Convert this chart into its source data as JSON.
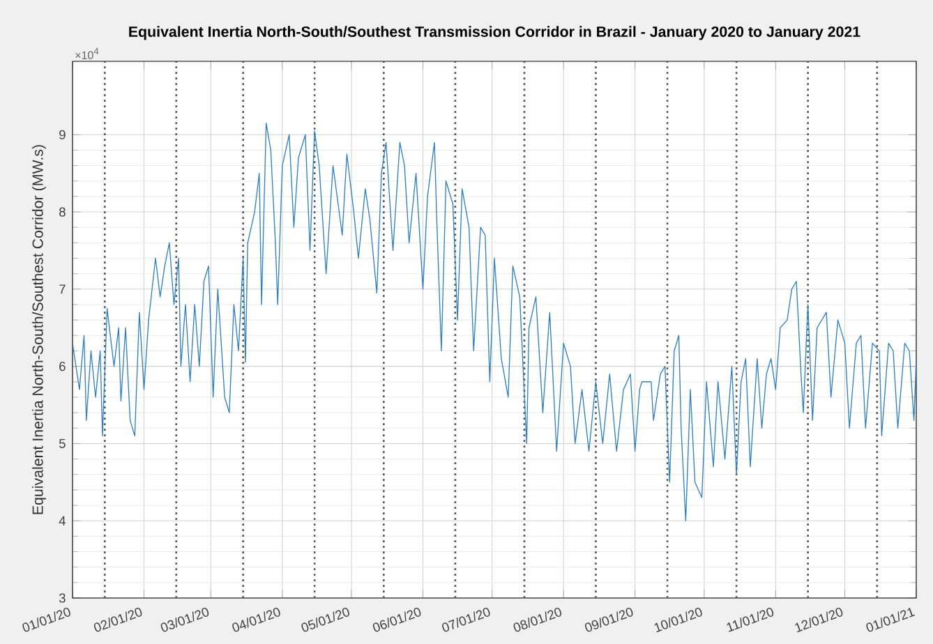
{
  "chart_data": {
    "type": "line",
    "title": "Equivalent Inertia North-South/Southest Transmission Corridor in Brazil - January 2020 to January 2021",
    "ylabel": "Equivalent Inertia  North-South/Southest Corridor (MW.s)",
    "annotations": [
      "×10$^{4}$"
    ],
    "xlim": [
      "2020-01-01",
      "2021-01-01"
    ],
    "xticks": [
      {
        "value": "2020-01-01",
        "label": "01/01/20"
      },
      {
        "value": "2020-02-01",
        "label": "02/01/20"
      },
      {
        "value": "2020-03-01",
        "label": "03/01/20"
      },
      {
        "value": "2020-04-01",
        "label": "04/01/20"
      },
      {
        "value": "2020-05-01",
        "label": "05/01/20"
      },
      {
        "value": "2020-06-01",
        "label": "06/01/20"
      },
      {
        "value": "2020-07-01",
        "label": "07/01/20"
      },
      {
        "value": "2020-08-01",
        "label": "08/01/20"
      },
      {
        "value": "2020-09-01",
        "label": "09/01/20"
      },
      {
        "value": "2020-10-01",
        "label": "10/01/20"
      },
      {
        "value": "2020-11-01",
        "label": "11/01/20"
      },
      {
        "value": "2020-12-01",
        "label": "12/01/20"
      },
      {
        "value": "2021-01-01",
        "label": "01/01/21"
      }
    ],
    "ylim": [
      3,
      9.95
    ],
    "yticks": [
      3,
      4,
      5,
      6,
      7,
      8,
      9
    ],
    "grid": true,
    "line_style": "solid",
    "ref_lines": [
      {
        "axis": "x",
        "value": "2020-01-15",
        "color": "#555555",
        "line_style": "dotted"
      },
      {
        "axis": "x",
        "value": "2020-02-15",
        "color": "#555555",
        "line_style": "dotted"
      },
      {
        "axis": "x",
        "value": "2020-03-15",
        "color": "#555555",
        "line_style": "dotted"
      },
      {
        "axis": "x",
        "value": "2020-04-15",
        "color": "#555555",
        "line_style": "dotted"
      },
      {
        "axis": "x",
        "value": "2020-05-15",
        "color": "#555555",
        "line_style": "dotted"
      },
      {
        "axis": "x",
        "value": "2020-06-15",
        "color": "#555555",
        "line_style": "dotted"
      },
      {
        "axis": "x",
        "value": "2020-07-15",
        "color": "#555555",
        "line_style": "dotted"
      },
      {
        "axis": "x",
        "value": "2020-08-15",
        "color": "#555555",
        "line_style": "dotted"
      },
      {
        "axis": "x",
        "value": "2020-09-15",
        "color": "#555555",
        "line_style": "dotted"
      },
      {
        "axis": "x",
        "value": "2020-10-15",
        "color": "#555555",
        "line_style": "dotted"
      },
      {
        "axis": "x",
        "value": "2020-11-15",
        "color": "#555555",
        "line_style": "dotted"
      },
      {
        "axis": "x",
        "value": "2020-12-15",
        "color": "#555555",
        "line_style": "dotted"
      }
    ],
    "series": [
      {
        "color": "#2f7fc1",
        "x": [
          "2020-01-01",
          "2020-01-04",
          "2020-01-06",
          "2020-01-07",
          "2020-01-09",
          "2020-01-11",
          "2020-01-13",
          "2020-01-14",
          "2020-01-16",
          "2020-01-19",
          "2020-01-21",
          "2020-01-22",
          "2020-01-24",
          "2020-01-26",
          "2020-01-28",
          "2020-01-30",
          "2020-02-01",
          "2020-02-03",
          "2020-02-06",
          "2020-02-08",
          "2020-02-10",
          "2020-02-12",
          "2020-02-14",
          "2020-02-16",
          "2020-02-17",
          "2020-02-19",
          "2020-02-21",
          "2020-02-23",
          "2020-02-25",
          "2020-02-27",
          "2020-02-29",
          "2020-03-02",
          "2020-03-04",
          "2020-03-07",
          "2020-03-09",
          "2020-03-11",
          "2020-03-13",
          "2020-03-15",
          "2020-03-16",
          "2020-03-17",
          "2020-03-20",
          "2020-03-22",
          "2020-03-23",
          "2020-03-25",
          "2020-03-27",
          "2020-03-29",
          "2020-03-30",
          "2020-04-01",
          "2020-04-04",
          "2020-04-06",
          "2020-04-08",
          "2020-04-11",
          "2020-04-13",
          "2020-04-15",
          "2020-04-17",
          "2020-04-20",
          "2020-04-23",
          "2020-04-27",
          "2020-04-29",
          "2020-05-02",
          "2020-05-04",
          "2020-05-07",
          "2020-05-09",
          "2020-05-12",
          "2020-05-14",
          "2020-05-16",
          "2020-05-19",
          "2020-05-22",
          "2020-05-24",
          "2020-05-26",
          "2020-05-29",
          "2020-06-01",
          "2020-06-03",
          "2020-06-06",
          "2020-06-07",
          "2020-06-09",
          "2020-06-11",
          "2020-06-14",
          "2020-06-16",
          "2020-06-18",
          "2020-06-21",
          "2020-06-23",
          "2020-06-26",
          "2020-06-28",
          "2020-06-30",
          "2020-07-02",
          "2020-07-05",
          "2020-07-08",
          "2020-07-10",
          "2020-07-13",
          "2020-07-16",
          "2020-07-17",
          "2020-07-20",
          "2020-07-23",
          "2020-07-26",
          "2020-07-29",
          "2020-08-01",
          "2020-08-04",
          "2020-08-06",
          "2020-08-09",
          "2020-08-12",
          "2020-08-15",
          "2020-08-18",
          "2020-08-21",
          "2020-08-24",
          "2020-08-27",
          "2020-08-30",
          "2020-09-01",
          "2020-09-03",
          "2020-09-04",
          "2020-09-08",
          "2020-09-09",
          "2020-09-12",
          "2020-09-14",
          "2020-09-16",
          "2020-09-18",
          "2020-09-20",
          "2020-09-21",
          "2020-09-23",
          "2020-09-25",
          "2020-09-27",
          "2020-09-30",
          "2020-10-02",
          "2020-10-05",
          "2020-10-07",
          "2020-10-10",
          "2020-10-13",
          "2020-10-15",
          "2020-10-17",
          "2020-10-19",
          "2020-10-21",
          "2020-10-24",
          "2020-10-26",
          "2020-10-28",
          "2020-10-30",
          "2020-11-01",
          "2020-11-03",
          "2020-11-06",
          "2020-11-08",
          "2020-11-10",
          "2020-11-12",
          "2020-11-13",
          "2020-11-15",
          "2020-11-17",
          "2020-11-19",
          "2020-11-23",
          "2020-11-25",
          "2020-11-28",
          "2020-12-01",
          "2020-12-03",
          "2020-12-06",
          "2020-12-08",
          "2020-12-10",
          "2020-12-13",
          "2020-12-16",
          "2020-12-17",
          "2020-12-20",
          "2020-12-22",
          "2020-12-24",
          "2020-12-27",
          "2020-12-29",
          "2020-12-31",
          "2021-01-01"
        ],
        "values": [
          6.3,
          5.7,
          6.4,
          5.3,
          6.2,
          5.6,
          6.2,
          5.1,
          6.75,
          6.0,
          6.5,
          5.55,
          6.5,
          5.3,
          5.1,
          6.7,
          5.7,
          6.6,
          7.4,
          6.9,
          7.3,
          7.6,
          6.8,
          7.4,
          6.0,
          6.8,
          5.8,
          6.8,
          6.0,
          7.1,
          7.3,
          5.6,
          7.0,
          5.6,
          5.4,
          6.8,
          6.2,
          7.4,
          6.05,
          7.6,
          8.0,
          8.5,
          6.8,
          9.15,
          8.8,
          7.6,
          6.8,
          8.6,
          9.0,
          7.8,
          8.7,
          9.0,
          7.5,
          9.05,
          8.6,
          7.2,
          8.6,
          7.7,
          8.75,
          8.0,
          7.4,
          8.3,
          7.9,
          6.95,
          8.5,
          8.9,
          7.5,
          8.9,
          8.6,
          7.6,
          8.5,
          7.0,
          8.2,
          8.9,
          7.9,
          6.2,
          8.4,
          8.1,
          6.6,
          8.3,
          7.8,
          6.2,
          7.8,
          7.7,
          5.8,
          7.4,
          6.1,
          5.6,
          7.3,
          6.9,
          5.0,
          6.5,
          6.9,
          5.4,
          6.7,
          4.9,
          6.3,
          6.0,
          5.0,
          5.7,
          4.9,
          5.8,
          5.0,
          5.9,
          4.9,
          5.7,
          5.9,
          4.9,
          5.7,
          5.8,
          5.8,
          5.3,
          5.9,
          6.0,
          4.5,
          6.2,
          6.4,
          5.2,
          4.0,
          5.7,
          4.5,
          4.3,
          5.8,
          4.7,
          5.8,
          4.8,
          6.0,
          4.6,
          5.8,
          6.1,
          4.7,
          6.1,
          5.2,
          5.9,
          6.1,
          5.7,
          6.5,
          6.6,
          7.0,
          7.1,
          5.9,
          5.4,
          6.8,
          5.3,
          6.5,
          6.7,
          5.6,
          6.6,
          6.3,
          5.2,
          6.3,
          6.4,
          5.2,
          6.3,
          6.2,
          5.1,
          6.3,
          6.2,
          5.2,
          6.3,
          6.2,
          5.3,
          6.1
        ]
      }
    ]
  }
}
